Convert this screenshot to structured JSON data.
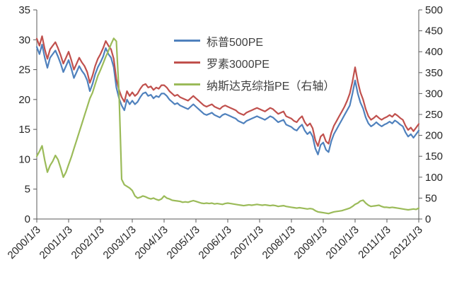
{
  "chart_data": {
    "type": "line",
    "title": "",
    "grid": false,
    "legend_position": "inside-top-center",
    "x_tick_labels": [
      "2000/1/3",
      "2001/1/3",
      "2002/1/3",
      "2003/1/3",
      "2004/1/3",
      "2005/1/3",
      "2006/1/3",
      "2007/1/3",
      "2008/1/3",
      "2009/1/3",
      "2010/1/3",
      "2011/1/3",
      "2012/1/3"
    ],
    "x_points_per_tick": 12,
    "left_axis": {
      "min": 0,
      "max": 35,
      "ticks": [
        0,
        5,
        10,
        15,
        20,
        25,
        30,
        35
      ]
    },
    "right_axis": {
      "min": 0,
      "max": 500,
      "ticks": [
        0,
        50,
        100,
        150,
        200,
        250,
        300,
        350,
        400,
        450,
        500
      ]
    },
    "series": [
      {
        "name": "标普500PE",
        "color": "#4F81BD",
        "axis": "left",
        "values": [
          28.8,
          27.6,
          29.2,
          27.0,
          25.3,
          27.0,
          27.6,
          28.2,
          27.2,
          26.0,
          24.6,
          25.6,
          26.6,
          25.2,
          23.6,
          24.6,
          25.6,
          24.8,
          24.2,
          23.2,
          21.4,
          22.6,
          24.2,
          25.4,
          26.2,
          27.2,
          28.6,
          27.6,
          27.0,
          25.4,
          22.0,
          20.2,
          19.0,
          18.2,
          20.0,
          19.2,
          19.8,
          19.2,
          19.6,
          20.4,
          21.0,
          21.2,
          20.6,
          20.8,
          20.2,
          20.6,
          20.4,
          21.0,
          21.0,
          20.6,
          20.0,
          19.6,
          19.2,
          19.4,
          19.0,
          18.8,
          18.6,
          18.4,
          18.8,
          19.2,
          18.8,
          18.4,
          18.0,
          17.6,
          17.4,
          17.6,
          17.8,
          17.4,
          17.2,
          17.0,
          17.4,
          17.6,
          17.4,
          17.2,
          17.0,
          16.8,
          16.4,
          16.2,
          16.0,
          16.4,
          16.6,
          16.8,
          17.0,
          17.2,
          17.0,
          16.8,
          16.6,
          16.9,
          17.2,
          17.0,
          16.6,
          16.2,
          16.4,
          16.6,
          15.8,
          15.6,
          15.4,
          15.0,
          14.8,
          15.4,
          15.8,
          14.8,
          14.2,
          14.6,
          13.8,
          11.8,
          10.8,
          12.4,
          12.8,
          11.6,
          11.2,
          13.0,
          14.2,
          15.0,
          15.8,
          16.6,
          17.4,
          18.2,
          19.0,
          21.0,
          23.2,
          21.0,
          19.5,
          18.5,
          17.0,
          16.0,
          15.5,
          15.8,
          16.2,
          15.8,
          15.5,
          15.8,
          16.0,
          16.3,
          16.0,
          16.5,
          16.2,
          15.8,
          15.5,
          14.5,
          13.8,
          14.2,
          13.6,
          14.2,
          14.8
        ]
      },
      {
        "name": "罗素3000PE",
        "color": "#C0504D",
        "axis": "left",
        "values": [
          30.2,
          29.0,
          30.6,
          28.4,
          26.8,
          28.4,
          29.0,
          29.6,
          28.6,
          27.4,
          26.0,
          27.0,
          28.0,
          26.6,
          25.0,
          26.0,
          27.0,
          26.2,
          25.6,
          24.6,
          22.8,
          24.0,
          25.6,
          26.8,
          27.6,
          28.6,
          29.8,
          29.0,
          28.4,
          26.8,
          23.4,
          21.6,
          20.4,
          19.6,
          21.4,
          20.6,
          21.2,
          20.6,
          21.0,
          21.8,
          22.4,
          22.6,
          22.0,
          22.2,
          21.6,
          22.0,
          21.8,
          22.4,
          22.4,
          22.0,
          21.4,
          21.0,
          20.6,
          20.8,
          20.4,
          20.2,
          20.0,
          19.8,
          20.2,
          20.6,
          20.2,
          19.8,
          19.4,
          19.0,
          18.8,
          19.0,
          19.2,
          18.8,
          18.6,
          18.4,
          18.8,
          19.0,
          18.8,
          18.6,
          18.4,
          18.2,
          17.8,
          17.6,
          17.4,
          17.8,
          18.0,
          18.2,
          18.4,
          18.6,
          18.4,
          18.2,
          18.0,
          18.3,
          18.6,
          18.4,
          18.0,
          17.6,
          17.8,
          18.0,
          17.2,
          17.0,
          16.8,
          16.4,
          16.2,
          16.8,
          17.2,
          16.2,
          15.6,
          16.0,
          15.2,
          13.2,
          12.2,
          13.8,
          14.2,
          13.0,
          12.6,
          14.4,
          15.6,
          16.4,
          17.2,
          18.0,
          18.8,
          19.8,
          21.0,
          23.0,
          25.4,
          23.0,
          21.2,
          20.0,
          18.4,
          17.2,
          16.6,
          16.9,
          17.3,
          16.9,
          16.6,
          16.9,
          17.1,
          17.4,
          17.1,
          17.6,
          17.3,
          16.9,
          16.6,
          15.6,
          14.9,
          15.3,
          14.7,
          15.3,
          15.9
        ]
      },
      {
        "name": "纳斯达克综指PE（右轴）",
        "color": "#9BBB59",
        "axis": "right",
        "values": [
          150,
          162,
          175,
          140,
          112,
          128,
          138,
          152,
          142,
          122,
          100,
          112,
          130,
          148,
          168,
          188,
          208,
          228,
          248,
          268,
          288,
          302,
          322,
          342,
          356,
          372,
          388,
          402,
          418,
          432,
          425,
          300,
          95,
          82,
          78,
          74,
          68,
          55,
          50,
          52,
          55,
          53,
          50,
          48,
          50,
          47,
          45,
          48,
          55,
          50,
          48,
          45,
          44,
          43,
          42,
          40,
          41,
          40,
          42,
          44,
          42,
          40,
          38,
          37,
          38,
          37,
          38,
          36,
          37,
          36,
          35,
          37,
          38,
          37,
          36,
          35,
          34,
          33,
          32,
          33,
          34,
          33,
          34,
          35,
          34,
          33,
          34,
          33,
          32,
          33,
          32,
          30,
          31,
          32,
          30,
          29,
          28,
          27,
          26,
          27,
          26,
          25,
          24,
          25,
          24,
          20,
          17,
          16,
          15,
          14,
          13,
          15,
          17,
          18,
          19,
          20,
          22,
          24,
          26,
          30,
          35,
          38,
          43,
          45,
          38,
          33,
          30,
          31,
          32,
          33,
          30,
          28,
          28,
          27,
          28,
          27,
          26,
          25,
          24,
          23,
          22,
          23,
          24,
          23,
          26
        ]
      }
    ]
  }
}
